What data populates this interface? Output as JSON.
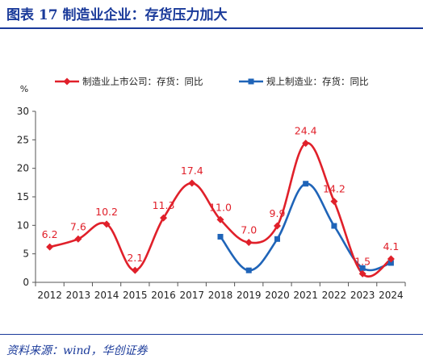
{
  "title": "图表 17    制造业企业：存货压力加大",
  "source": "资料来源：wind，华创证券",
  "colors": {
    "listed": "#e0202a",
    "above_scale": "#1f64b8",
    "header": "#1a3a9a"
  },
  "chart_data": {
    "type": "line",
    "ylabel": "%",
    "ylim": [
      0,
      30
    ],
    "yticks": [
      0,
      5,
      10,
      15,
      20,
      25,
      30
    ],
    "categories": [
      "2012",
      "2013",
      "2014",
      "2015",
      "2016",
      "2017",
      "2018",
      "2019",
      "2020",
      "2021",
      "2022",
      "2023",
      "2024"
    ],
    "legend_position": "top",
    "series": [
      {
        "name": "制造业上市公司：存货：同比",
        "color": "#e0202a",
        "marker": "diamond",
        "smooth": true,
        "values": [
          6.2,
          7.6,
          10.2,
          2.1,
          11.3,
          17.4,
          11.0,
          7.0,
          9.9,
          24.4,
          14.2,
          1.5,
          4.1
        ],
        "labels": [
          "6.2",
          "7.6",
          "10.2",
          "2.1",
          "11.3",
          "17.4",
          "11.0",
          "7.0",
          "9.9",
          "24.4",
          "14.2",
          "1.5",
          "4.1"
        ]
      },
      {
        "name": "规上制造业：存货：同比",
        "color": "#1f64b8",
        "marker": "square",
        "smooth": true,
        "values": [
          null,
          null,
          null,
          null,
          null,
          null,
          8.0,
          2.1,
          7.6,
          17.3,
          9.9,
          2.5,
          3.4
        ],
        "labels": []
      }
    ]
  }
}
